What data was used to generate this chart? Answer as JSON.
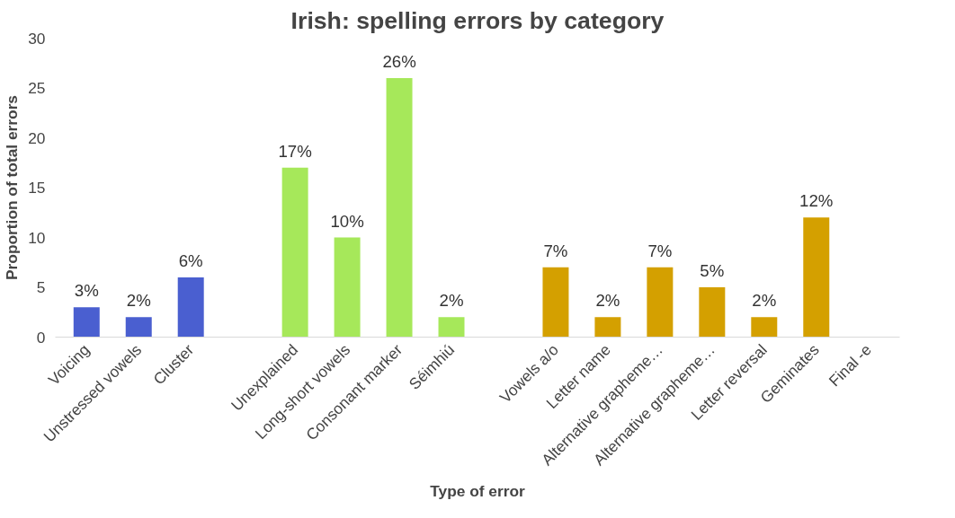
{
  "chart_data": {
    "type": "bar",
    "title": "Irish: spelling errors by category",
    "xlabel": "Type of error",
    "ylabel": "Proportion of total errors",
    "categories": [
      "Voicing",
      "Unstressed vowels",
      "Cluster",
      null,
      "Unexplained",
      "Long-short vowels",
      "Consonant marker",
      "Séimhiú",
      null,
      "Vowels a/o",
      "Letter name",
      "Alternative grapheme…",
      "Alternative grapheme…",
      "Letter reversal",
      "Geminates",
      "Final -e"
    ],
    "values": [
      3,
      2,
      6,
      null,
      17,
      10,
      26,
      2,
      null,
      7,
      2,
      7,
      5,
      2,
      12,
      null
    ],
    "colors": [
      "#4a5fd0",
      "#4a5fd0",
      "#4a5fd0",
      null,
      "#a6e85a",
      "#a6e85a",
      "#a6e85a",
      "#a6e85a",
      null,
      "#d4a000",
      "#d4a000",
      "#d4a000",
      "#d4a000",
      "#d4a000",
      "#d4a000",
      null
    ],
    "value_labels": [
      "3%",
      "2%",
      "6%",
      null,
      "17%",
      "10%",
      "26%",
      "2%",
      null,
      "7%",
      "2%",
      "7%",
      "5%",
      "2%",
      "12%",
      null
    ],
    "ylim": [
      0,
      30
    ],
    "yticks": [
      0,
      5,
      10,
      15,
      20,
      25,
      30
    ],
    "grid": false
  }
}
